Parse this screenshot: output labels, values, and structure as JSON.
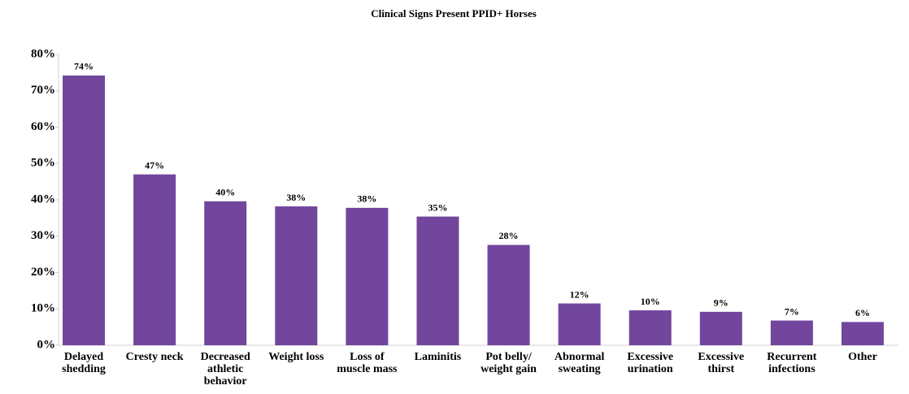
{
  "chart_data": {
    "type": "bar",
    "title": "Clinical Signs Present PPID+ Horses",
    "categories": [
      "Delayed shedding",
      "Cresty neck",
      "Decreased athletic behavior",
      "Weight loss",
      "Loss of muscle mass",
      "Laminitis",
      "Pot belly/ weight gain",
      "Abnormal sweating",
      "Excessive urination",
      "Excessive thirst",
      "Recurrent infections",
      "Other"
    ],
    "values": [
      74.2,
      47,
      39.6,
      38.2,
      37.8,
      35.4,
      27.6,
      11.5,
      9.6,
      9.2,
      6.8,
      6.4
    ],
    "value_labels": [
      "74%",
      "47%",
      "40%",
      "38%",
      "38%",
      "35%",
      "28%",
      "12%",
      "10%",
      "9%",
      "7%",
      "6%"
    ],
    "color": "#71469c",
    "ylim": [
      0,
      80
    ],
    "yticks": [
      {
        "value": 0,
        "label": "0%"
      },
      {
        "value": 10,
        "label": "10%"
      },
      {
        "value": 20,
        "label": "20%"
      },
      {
        "value": 30,
        "label": "30%"
      },
      {
        "value": 40,
        "label": "40%"
      },
      {
        "value": 50,
        "label": "50%"
      },
      {
        "value": 60,
        "label": "60%"
      },
      {
        "value": 70,
        "label": "70%"
      },
      {
        "value": 80,
        "label": "80%"
      }
    ],
    "grid": false
  }
}
